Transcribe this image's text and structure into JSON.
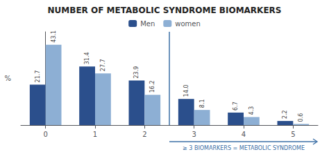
{
  "chart_data": {
    "type": "bar",
    "title": "NUMBER OF METABOLIC SYNDROME BIOMARKERS",
    "categories": [
      "0",
      "1",
      "2",
      "3",
      "4",
      "5"
    ],
    "series": [
      {
        "name": "Men",
        "color": "#2b4f8c",
        "values": [
          21.7,
          31.4,
          23.9,
          14.0,
          6.7,
          2.2
        ],
        "value_labels": [
          "21.7",
          "31.4",
          "23.9",
          "14.0",
          "6.7",
          "2.2"
        ]
      },
      {
        "name": "women",
        "color": "#8dafd4",
        "values": [
          43.1,
          27.7,
          16.2,
          8.1,
          4.3,
          0.6
        ]
      }
    ],
    "ylabel": "%",
    "ylim": [
      0,
      50
    ],
    "tick_labels": "x",
    "grid": false,
    "legend": "upper center",
    "data_labels": true,
    "annotations": [
      {
        "text": "≥ 3 BIOMARKERS = METABOLIC SYNDROME",
        "x_start": 2.5,
        "color": "#3a6ea5"
      }
    ]
  }
}
